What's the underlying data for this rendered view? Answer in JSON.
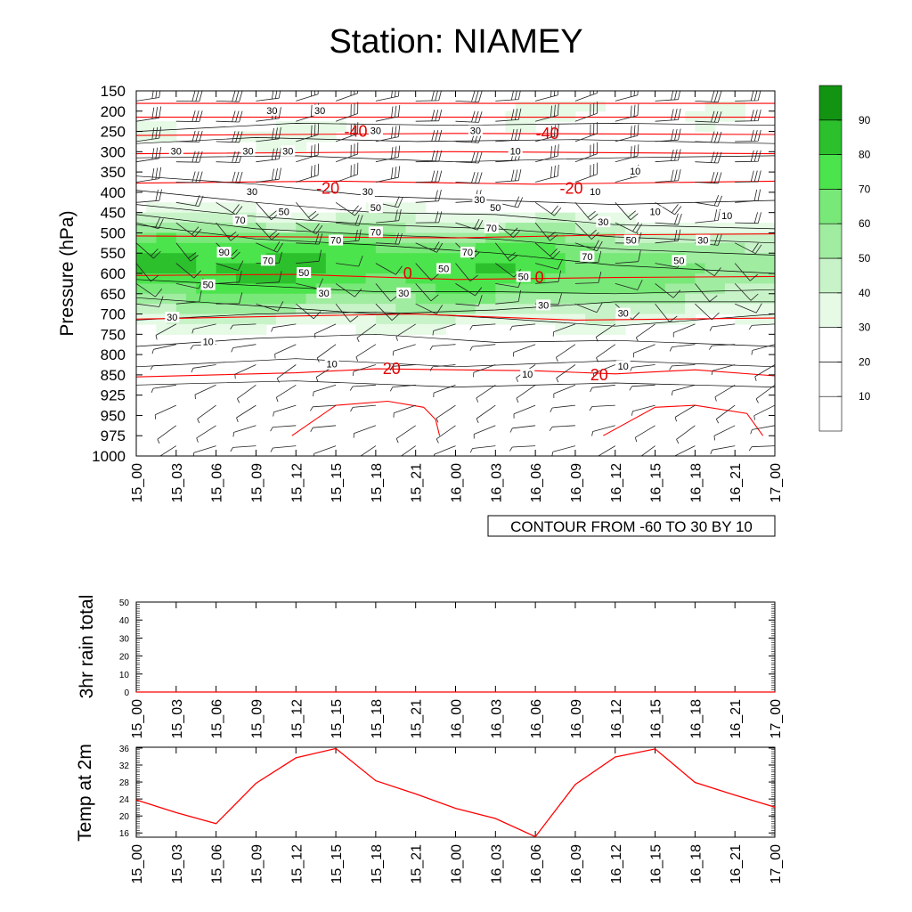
{
  "title": "Station: NIAMEY",
  "colors": {
    "temp_line": "#ff0000",
    "contour_label": "#e00000",
    "rh_levels": [
      "#ffffff",
      "#ffffff",
      "#ffffff",
      "#e6fae6",
      "#c8f3c8",
      "#a0eca0",
      "#78e878",
      "#4ce44c",
      "#2cc02c",
      "#129312"
    ]
  },
  "chart_data": [
    {
      "id": "upper-air",
      "type": "heatmap",
      "ylabel": "Pressure (hPa)",
      "xticks": [
        "15_00",
        "15_03",
        "15_06",
        "15_09",
        "15_12",
        "15_15",
        "15_18",
        "15_21",
        "16_00",
        "16_03",
        "16_06",
        "16_09",
        "16_12",
        "16_15",
        "16_18",
        "16_21",
        "17_00"
      ],
      "yticks": [
        "150",
        "200",
        "250",
        "300",
        "350",
        "400",
        "450",
        "500",
        "550",
        "600",
        "650",
        "700",
        "750",
        "800",
        "850",
        "925",
        "950",
        "975",
        "1000"
      ],
      "contour_info": "CONTOUR FROM -60 TO 30 BY 10",
      "colorbar_labels": [
        "90",
        "80",
        "70",
        "60",
        "50",
        "40",
        "30",
        "20",
        "10"
      ],
      "rh_contour_labels": [
        {
          "t": 3.4,
          "lev": 200,
          "v": "30"
        },
        {
          "t": 4.6,
          "lev": 200,
          "v": "30"
        },
        {
          "t": 6.0,
          "lev": 250,
          "v": "30"
        },
        {
          "t": 8.5,
          "lev": 250,
          "v": "30"
        },
        {
          "t": 1.0,
          "lev": 300,
          "v": "30"
        },
        {
          "t": 3.8,
          "lev": 300,
          "v": "30"
        },
        {
          "t": 2.8,
          "lev": 300,
          "v": "30"
        },
        {
          "t": 9.5,
          "lev": 300,
          "v": "10"
        },
        {
          "t": 12.5,
          "lev": 350,
          "v": "10"
        },
        {
          "t": 2.9,
          "lev": 400,
          "v": "30"
        },
        {
          "t": 5.8,
          "lev": 400,
          "v": "30"
        },
        {
          "t": 8.6,
          "lev": 420,
          "v": "30"
        },
        {
          "t": 11.5,
          "lev": 400,
          "v": "10"
        },
        {
          "t": 3.7,
          "lev": 450,
          "v": "50"
        },
        {
          "t": 6.0,
          "lev": 440,
          "v": "50"
        },
        {
          "t": 9.0,
          "lev": 440,
          "v": "50"
        },
        {
          "t": 13.0,
          "lev": 450,
          "v": "10"
        },
        {
          "t": 2.6,
          "lev": 470,
          "v": "70"
        },
        {
          "t": 6.0,
          "lev": 500,
          "v": "70"
        },
        {
          "t": 8.9,
          "lev": 490,
          "v": "70"
        },
        {
          "t": 11.7,
          "lev": 475,
          "v": "30"
        },
        {
          "t": 14.8,
          "lev": 460,
          "v": "10"
        },
        {
          "t": 5.0,
          "lev": 520,
          "v": "70"
        },
        {
          "t": 8.3,
          "lev": 550,
          "v": "70"
        },
        {
          "t": 11.3,
          "lev": 560,
          "v": "70"
        },
        {
          "t": 12.4,
          "lev": 520,
          "v": "50"
        },
        {
          "t": 14.2,
          "lev": 520,
          "v": "30"
        },
        {
          "t": 2.2,
          "lev": 550,
          "v": "90"
        },
        {
          "t": 3.3,
          "lev": 570,
          "v": "70"
        },
        {
          "t": 4.2,
          "lev": 600,
          "v": "50"
        },
        {
          "t": 7.7,
          "lev": 590,
          "v": "50"
        },
        {
          "t": 9.7,
          "lev": 610,
          "v": "50"
        },
        {
          "t": 13.6,
          "lev": 570,
          "v": "50"
        },
        {
          "t": 1.8,
          "lev": 630,
          "v": "50"
        },
        {
          "t": 4.7,
          "lev": 650,
          "v": "30"
        },
        {
          "t": 6.7,
          "lev": 650,
          "v": "30"
        },
        {
          "t": 10.2,
          "lev": 680,
          "v": "30"
        },
        {
          "t": 12.2,
          "lev": 700,
          "v": "30"
        },
        {
          "t": 0.9,
          "lev": 710,
          "v": "30"
        },
        {
          "t": 1.8,
          "lev": 770,
          "v": "10"
        },
        {
          "t": 4.9,
          "lev": 825,
          "v": "10"
        },
        {
          "t": 9.8,
          "lev": 850,
          "v": "10"
        },
        {
          "t": 12.2,
          "lev": 830,
          "v": "10"
        }
      ],
      "temp_contour_labels": [
        {
          "t": 5.5,
          "lev": 250,
          "v": "-40"
        },
        {
          "t": 10.3,
          "lev": 255,
          "v": "-40"
        },
        {
          "t": 4.8,
          "lev": 390,
          "v": "-20"
        },
        {
          "t": 10.9,
          "lev": 390,
          "v": "-20"
        },
        {
          "t": 6.8,
          "lev": 600,
          "v": "0"
        },
        {
          "t": 10.1,
          "lev": 610,
          "v": "0"
        },
        {
          "t": 6.4,
          "lev": 835,
          "v": "20"
        },
        {
          "t": 11.6,
          "lev": 850,
          "v": "20"
        }
      ]
    },
    {
      "id": "rain",
      "type": "line",
      "ylabel": "3hr rain total",
      "ylim": [
        0,
        50
      ],
      "yticks": [
        "0",
        "10",
        "20",
        "30",
        "40",
        "50"
      ],
      "xticks": [
        "15_00",
        "15_03",
        "15_06",
        "15_09",
        "15_12",
        "15_15",
        "15_18",
        "15_21",
        "16_00",
        "16_03",
        "16_06",
        "16_09",
        "16_12",
        "16_15",
        "16_18",
        "16_21",
        "17_00"
      ],
      "x": [
        "15_00",
        "15_03",
        "15_06",
        "15_09",
        "15_12",
        "15_15",
        "15_18",
        "15_21",
        "16_00",
        "16_03",
        "16_06",
        "16_09",
        "16_12",
        "16_15",
        "16_18",
        "16_21",
        "17_00"
      ],
      "series": [
        {
          "values": [
            0,
            0,
            0,
            0,
            0,
            0,
            0,
            0,
            0,
            0,
            0,
            0,
            0,
            0,
            0,
            0,
            0
          ]
        }
      ]
    },
    {
      "id": "temp",
      "type": "line",
      "ylabel": "Temp at 2m",
      "ylim": [
        15,
        36.2
      ],
      "yticks": [
        "16",
        "20",
        "24",
        "28",
        "32",
        "36"
      ],
      "xticks": [
        "15_00",
        "15_03",
        "15_06",
        "15_09",
        "15_12",
        "15_15",
        "15_18",
        "15_21",
        "16_00",
        "16_03",
        "16_06",
        "16_09",
        "16_12",
        "16_15",
        "16_18",
        "16_21",
        "17_00"
      ],
      "x": [
        "15_00",
        "15_03",
        "15_06",
        "15_09",
        "15_12",
        "15_15",
        "15_18",
        "15_21",
        "16_00",
        "16_03",
        "16_06",
        "16_09",
        "16_12",
        "16_15",
        "16_18",
        "16_21",
        "17_00"
      ],
      "series": [
        {
          "values": [
            23.8,
            20.8,
            18.2,
            27.7,
            33.7,
            35.9,
            28.3,
            25.2,
            21.8,
            19.4,
            15.1,
            27.4,
            33.9,
            35.8,
            27.9,
            24.9,
            22.1
          ]
        }
      ]
    }
  ]
}
